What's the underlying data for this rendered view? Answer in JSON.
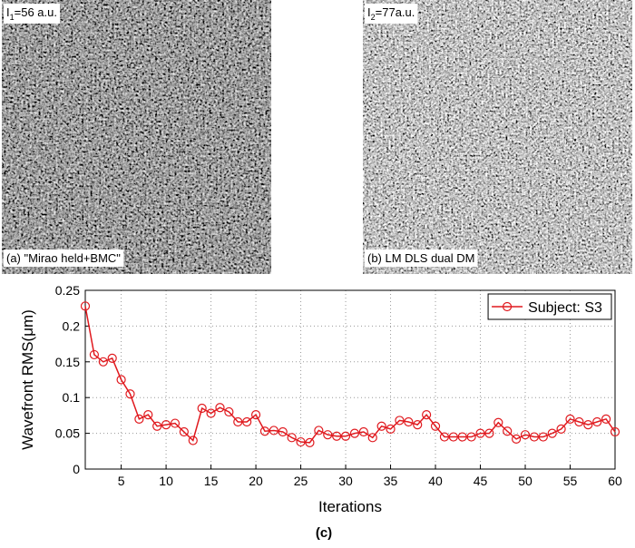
{
  "panels": [
    {
      "intensity_label": {
        "symbol": "I",
        "subscript": "1",
        "text": "=56 a.u."
      },
      "caption": "(a) \"Mirao held+BMC\""
    },
    {
      "intensity_label": {
        "symbol": "I",
        "subscript": "2",
        "text": "=77a.u."
      },
      "caption": "(b) LM DLS dual DM"
    }
  ],
  "chart_data": {
    "type": "line",
    "caption": "(c)",
    "x_label": "Iterations",
    "y_label": "Wavefront RMS(μm)",
    "x": [
      1,
      2,
      3,
      4,
      5,
      6,
      7,
      8,
      9,
      10,
      11,
      12,
      13,
      14,
      15,
      16,
      17,
      18,
      19,
      20,
      21,
      22,
      23,
      24,
      25,
      26,
      27,
      28,
      29,
      30,
      31,
      32,
      33,
      34,
      35,
      36,
      37,
      38,
      39,
      40,
      41,
      42,
      43,
      44,
      45,
      46,
      47,
      48,
      49,
      50,
      51,
      52,
      53,
      54,
      55,
      56,
      57,
      58,
      59,
      60
    ],
    "series": [
      {
        "name": "Subject: S3",
        "color": "#e0191e",
        "values": [
          0.228,
          0.16,
          0.15,
          0.155,
          0.125,
          0.105,
          0.07,
          0.076,
          0.06,
          0.062,
          0.064,
          0.052,
          0.04,
          0.085,
          0.078,
          0.086,
          0.08,
          0.066,
          0.066,
          0.076,
          0.053,
          0.054,
          0.052,
          0.044,
          0.038,
          0.037,
          0.054,
          0.048,
          0.046,
          0.046,
          0.05,
          0.052,
          0.044,
          0.06,
          0.056,
          0.068,
          0.066,
          0.062,
          0.076,
          0.06,
          0.045,
          0.045,
          0.045,
          0.045,
          0.05,
          0.05,
          0.065,
          0.053,
          0.042,
          0.048,
          0.045,
          0.045,
          0.05,
          0.056,
          0.07,
          0.066,
          0.062,
          0.066,
          0.07,
          0.052
        ]
      }
    ],
    "xlim": [
      1,
      60
    ],
    "xticks": [
      5,
      10,
      15,
      20,
      25,
      30,
      35,
      40,
      45,
      50,
      55,
      60
    ],
    "ylim": [
      0,
      0.25
    ],
    "yticks": [
      0,
      0.05,
      0.1,
      0.15,
      0.2,
      0.25
    ],
    "grid": true,
    "legend_position": "upper right"
  }
}
